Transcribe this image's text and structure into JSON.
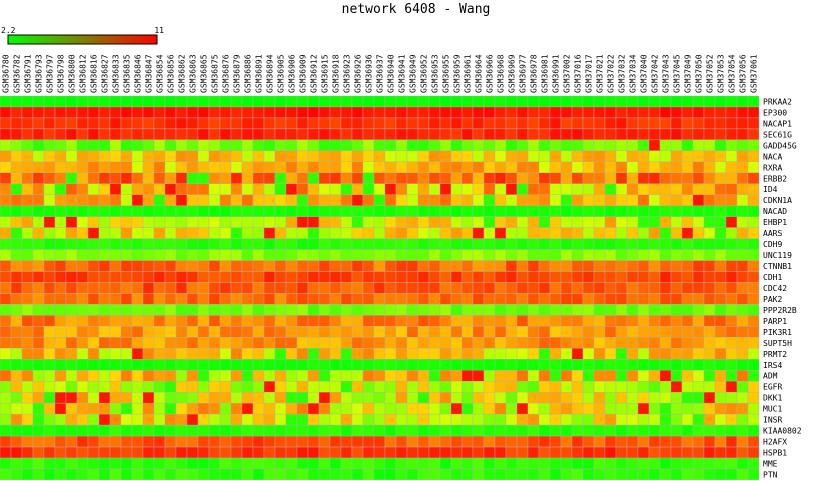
{
  "chart_data": {
    "type": "heatmap",
    "title": "network 6408 - Wang",
    "colorbar": {
      "min_label": "2.2",
      "max_label": "11",
      "min": 2.2,
      "max": 11,
      "low_color": "#00ff00",
      "high_color": "#ff0000"
    },
    "columns": [
      "GSM36780",
      "GSM36782",
      "GSM36791",
      "GSM36793",
      "GSM36797",
      "GSM36798",
      "GSM36800",
      "GSM36812",
      "GSM36816",
      "GSM36827",
      "GSM36833",
      "GSM36835",
      "GSM36846",
      "GSM36847",
      "GSM36854",
      "GSM36856",
      "GSM36862",
      "GSM36863",
      "GSM36865",
      "GSM36875",
      "GSM36876",
      "GSM36879",
      "GSM36886",
      "GSM36891",
      "GSM36894",
      "GSM36905",
      "GSM36906",
      "GSM36909",
      "GSM36912",
      "GSM36915",
      "GSM36918",
      "GSM36923",
      "GSM36926",
      "GSM36936",
      "GSM36937",
      "GSM36940",
      "GSM36941",
      "GSM36949",
      "GSM36952",
      "GSM36953",
      "GSM36955",
      "GSM36959",
      "GSM36961",
      "GSM36964",
      "GSM36966",
      "GSM36968",
      "GSM36969",
      "GSM36977",
      "GSM36978",
      "GSM36981",
      "GSM36991",
      "GSM37002",
      "GSM37016",
      "GSM37017",
      "GSM37021",
      "GSM37022",
      "GSM37032",
      "GSM37034",
      "GSM37040",
      "GSM37042",
      "GSM37043",
      "GSM37045",
      "GSM37049",
      "GSM37050",
      "GSM37052",
      "GSM37053",
      "GSM37054",
      "GSM37056",
      "GSM37061"
    ],
    "rows": [
      "PRKAA2",
      "EP300",
      "NACAP1",
      "SEC61G",
      "GADD45G",
      "NACA",
      "RXRA",
      "ERBB2",
      "ID4",
      "CDKN1A",
      "NACAD",
      "EHBP1",
      "AARS",
      "CDH9",
      "UNC119",
      "CTNNB1",
      "CDH1",
      "CDC42",
      "PAK2",
      "PPP2R2B",
      "PARP1",
      "PIK3R1",
      "SUPT5H",
      "PRMT2",
      "IRS4",
      "ADM",
      "EGFR",
      "DKK1",
      "MUC1",
      "INSR",
      "KIAA0802",
      "H2AFX",
      "HSPB1",
      "MME",
      "PTN"
    ],
    "row_levels": [
      0.02,
      0.95,
      0.9,
      0.92,
      0.25,
      0.55,
      0.6,
      0.75,
      0.6,
      0.6,
      0.05,
      0.5,
      0.5,
      0.08,
      0.3,
      0.75,
      0.85,
      0.8,
      0.75,
      0.25,
      0.7,
      0.65,
      0.65,
      0.55,
      0.05,
      0.55,
      0.4,
      0.45,
      0.5,
      0.5,
      0.08,
      0.8,
      0.88,
      0.1,
      0.1
    ],
    "row_noise": [
      0.02,
      0.04,
      0.06,
      0.05,
      0.15,
      0.12,
      0.12,
      0.18,
      0.2,
      0.15,
      0.03,
      0.15,
      0.15,
      0.05,
      0.1,
      0.12,
      0.08,
      0.1,
      0.1,
      0.1,
      0.12,
      0.12,
      0.12,
      0.15,
      0.03,
      0.2,
      0.2,
      0.22,
      0.22,
      0.22,
      0.05,
      0.1,
      0.08,
      0.08,
      0.08
    ]
  }
}
